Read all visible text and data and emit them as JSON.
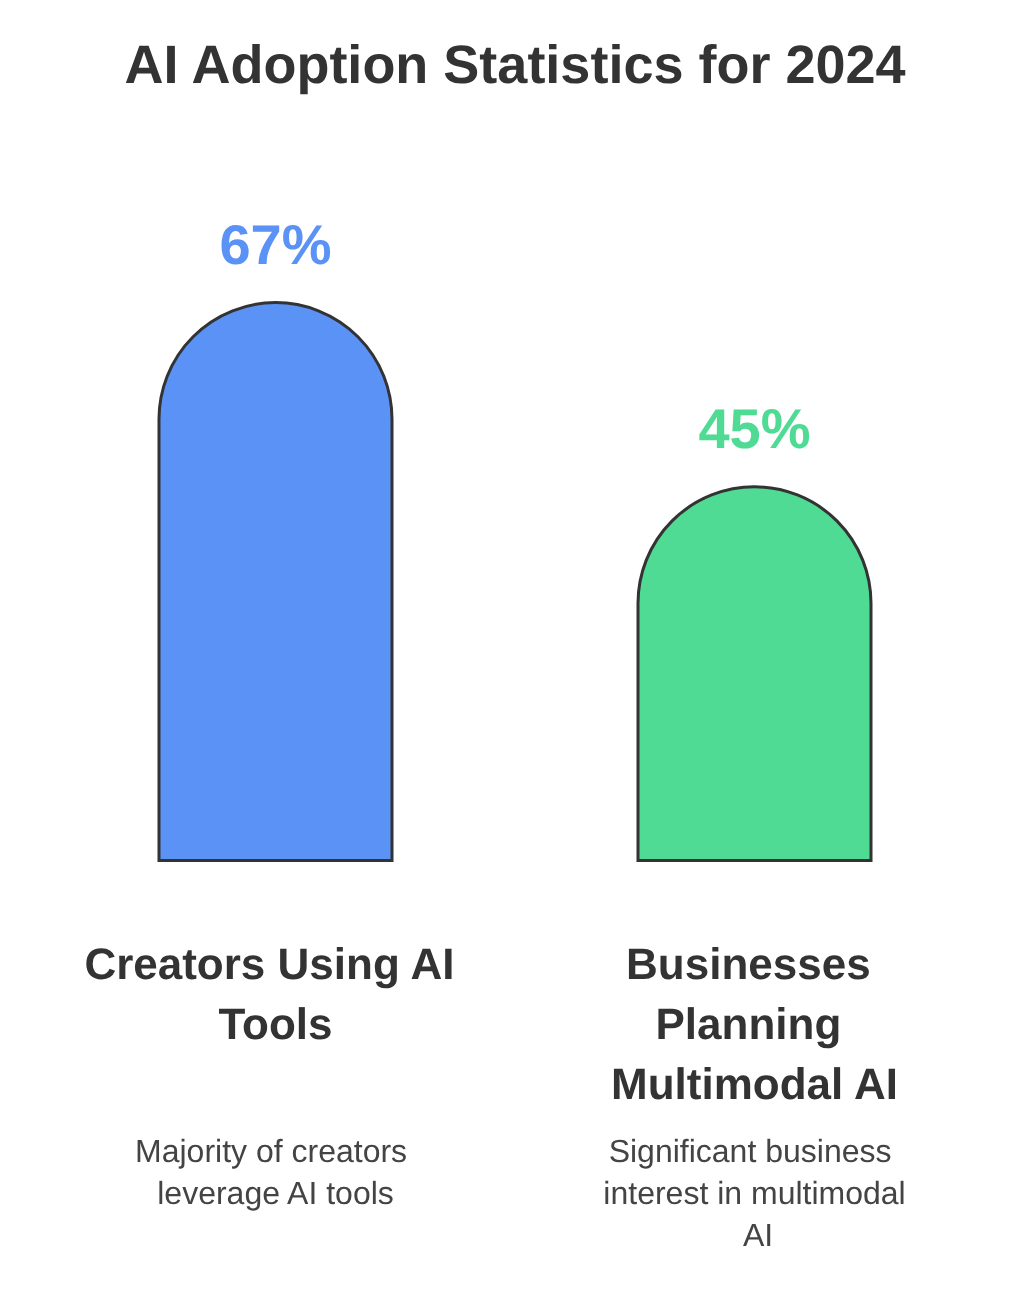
{
  "chart_data": {
    "type": "bar",
    "title": "AI Adoption Statistics for 2024",
    "categories": [
      "Creators Using AI Tools",
      "Businesses Planning Multimodal AI"
    ],
    "values": [
      67,
      45
    ],
    "value_labels": [
      "67%",
      "45%"
    ],
    "colors": [
      "#5b92f5",
      "#4fdb93"
    ],
    "annotations": [
      "Majority of creators leverage AI tools",
      "Significant business interest in multimodal AI"
    ]
  }
}
